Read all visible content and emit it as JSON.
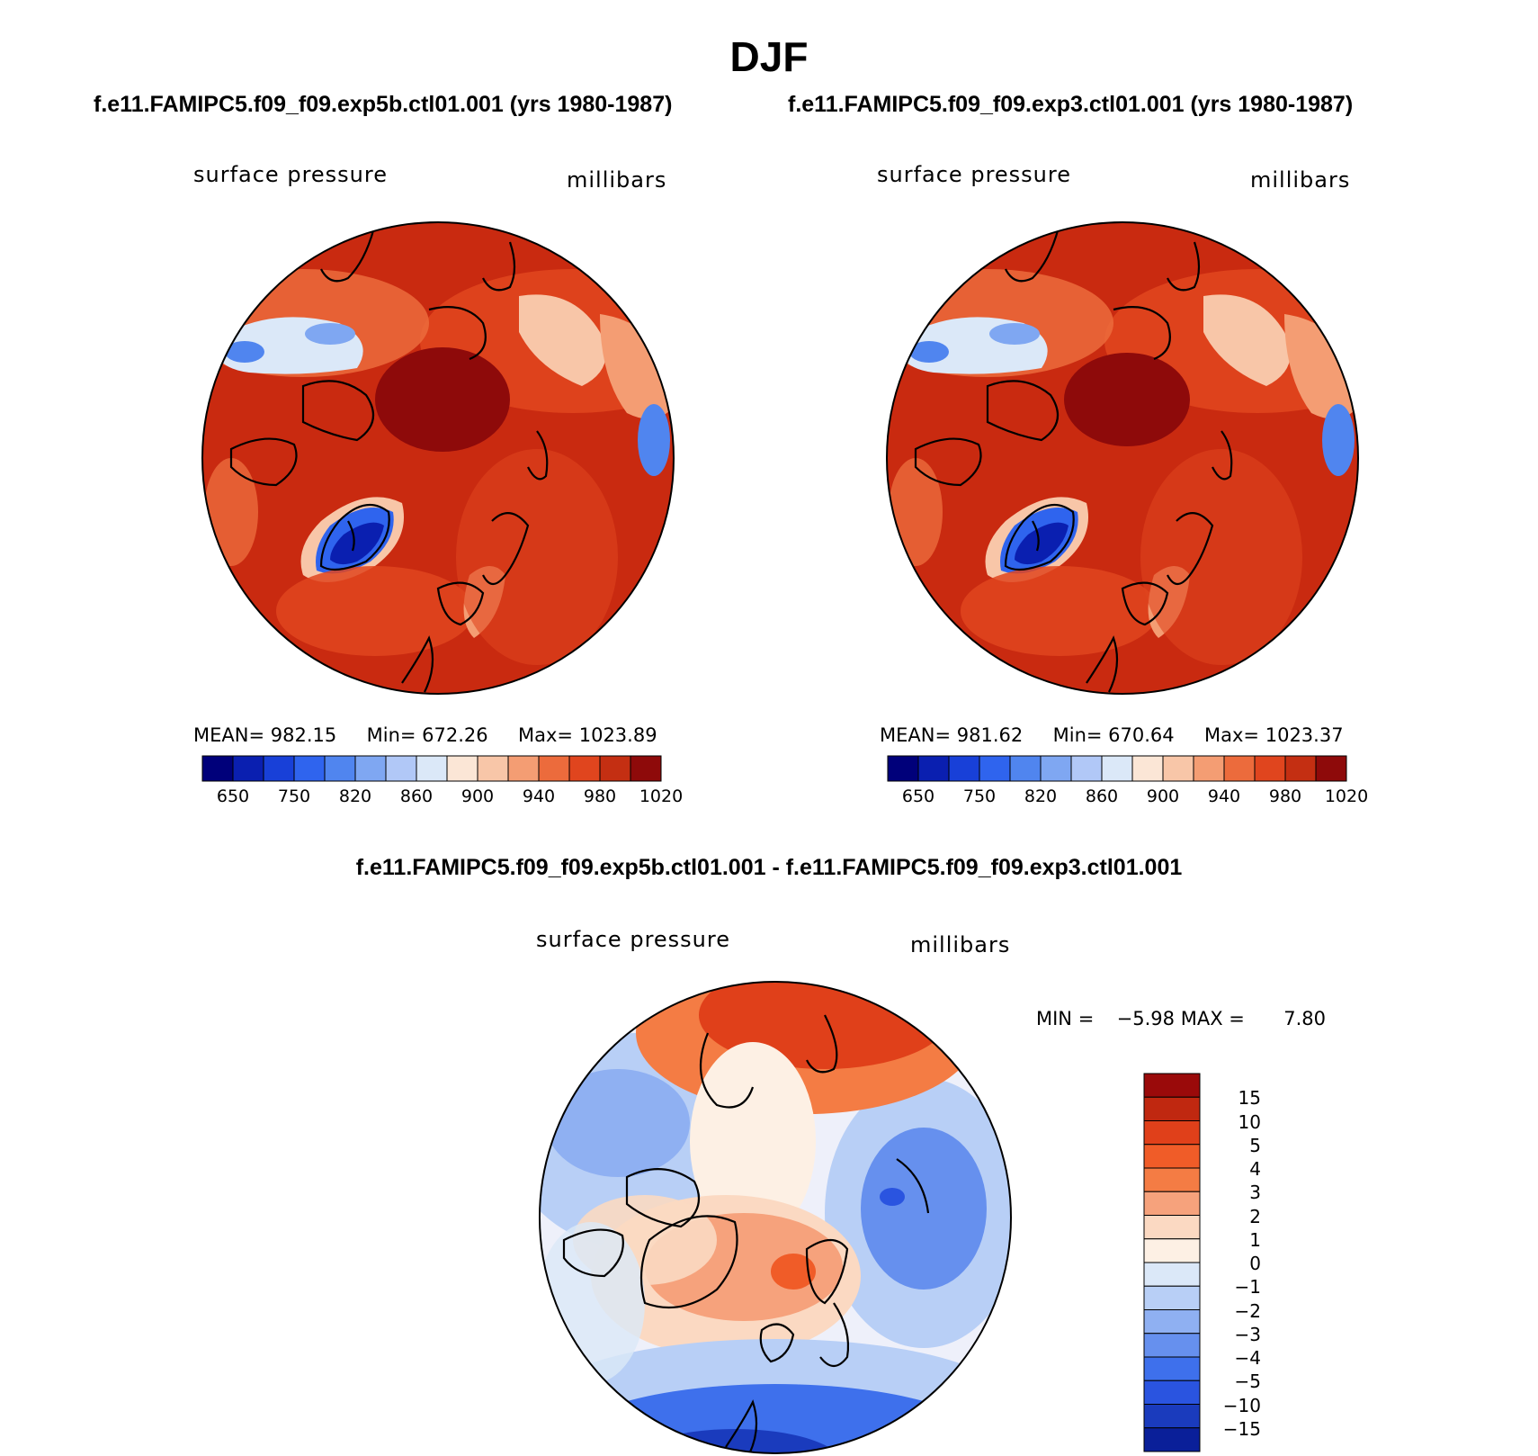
{
  "title": "DJF",
  "panels": [
    {
      "id": "exp5b",
      "heading": "f.e11.FAMIPC5.f09_f09.exp5b.ctl01.001 (yrs 1980-1987)",
      "variable": "surface pressure",
      "units": "millibars",
      "stats": {
        "mean_label": "MEAN=",
        "mean": "982.15",
        "min_label": "Min=",
        "min": "672.26",
        "max_label": "Max=",
        "max": "1023.89"
      }
    },
    {
      "id": "exp3",
      "heading": "f.e11.FAMIPC5.f09_f09.exp3.ctl01.001 (yrs 1980-1987)",
      "variable": "surface pressure",
      "units": "millibars",
      "stats": {
        "mean_label": "MEAN=",
        "mean": "981.62",
        "min_label": "Min=",
        "min": "670.64",
        "max_label": "Max=",
        "max": "1023.37"
      }
    }
  ],
  "abs_colorbar": {
    "colors": [
      "#00007a",
      "#0a1fb0",
      "#1840d8",
      "#2f64ee",
      "#5085ef",
      "#7fa7f2",
      "#b1c8f7",
      "#dbe8f8",
      "#fbe6d6",
      "#f8c6a8",
      "#f49d73",
      "#ec6b3c",
      "#e0451e",
      "#c42f12",
      "#8e0a0a"
    ],
    "tick_labels": [
      "650",
      "750",
      "820",
      "860",
      "900",
      "940",
      "980",
      "1020"
    ]
  },
  "difference": {
    "heading": "f.e11.FAMIPC5.f09_f09.exp5b.ctl01.001 - f.e11.FAMIPC5.f09_f09.exp3.ctl01.001",
    "variable": "surface pressure",
    "units": "millibars",
    "min_label": "MIN =",
    "min": "−5.98",
    "max_label": "MAX =",
    "max": "7.80",
    "colorbar": {
      "colors": [
        "#9a0a0a",
        "#c02810",
        "#e0401a",
        "#f05c28",
        "#f47c44",
        "#f6a27c",
        "#fbd9c2",
        "#fdf0e4",
        "#dbe8f8",
        "#b8cff6",
        "#8fb0f2",
        "#6690ee",
        "#3e70ec",
        "#2a54e0",
        "#1a3bbd",
        "#0a1f99"
      ],
      "tick_labels": [
        "15",
        "10",
        "5",
        "4",
        "3",
        "2",
        "1",
        "0",
        "−1",
        "−2",
        "−3",
        "−4",
        "−5",
        "−10",
        "−15"
      ]
    }
  },
  "maps": {
    "abs_background": "#c92a10",
    "diff_background": "#eef0fa"
  }
}
